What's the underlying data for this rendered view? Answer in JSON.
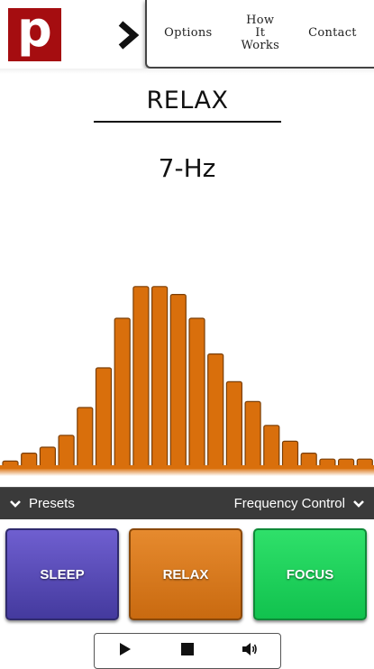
{
  "header": {
    "logo_letter": "p",
    "nav": [
      {
        "label": "Options"
      },
      {
        "label": "How It Works"
      },
      {
        "label": "Contact"
      }
    ]
  },
  "main": {
    "mode_title": "RELAX",
    "frequency": "7-Hz"
  },
  "visualizer": {
    "bar_levels": [
      0.03,
      0.07,
      0.1,
      0.16,
      0.3,
      0.5,
      0.75,
      0.91,
      0.91,
      0.87,
      0.75,
      0.57,
      0.43,
      0.33,
      0.21,
      0.13,
      0.07,
      0.04,
      0.04,
      0.04
    ],
    "bar_color": "#d96f0c",
    "bar_border": "#7a3e06"
  },
  "panel": {
    "presets_label": "Presets",
    "frequency_control_label": "Frequency Control"
  },
  "presets": [
    {
      "label": "SLEEP",
      "color": "#5a4cba"
    },
    {
      "label": "RELAX",
      "color": "#d9770f"
    },
    {
      "label": "FOCUS",
      "color": "#18cf57"
    }
  ],
  "player": {
    "play_icon": "play-icon",
    "stop_icon": "stop-icon",
    "volume_icon": "volume-icon"
  },
  "colors": {
    "logo_bg": "#a50d10",
    "panel_bar_bg": "#3a3a3a"
  }
}
